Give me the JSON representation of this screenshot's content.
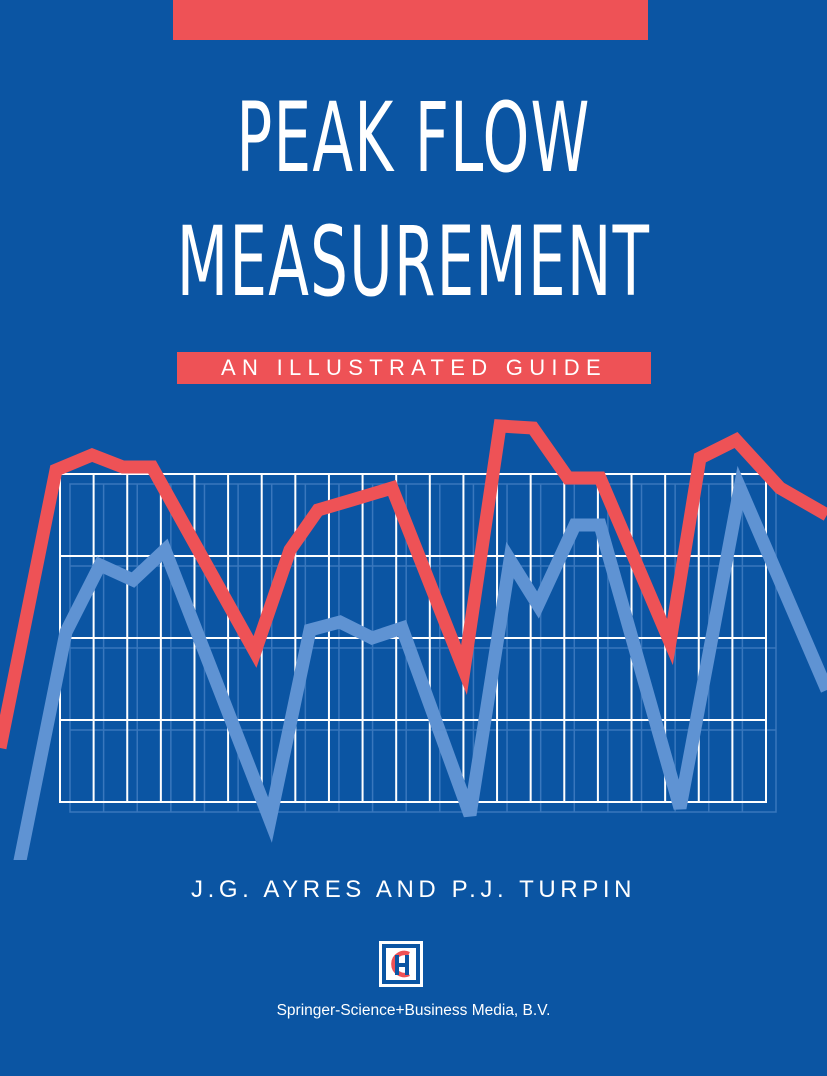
{
  "colors": {
    "background": "#0b55a3",
    "accent_red": "#ee5256",
    "light_blue": "#5f93d3",
    "white": "#ffffff"
  },
  "cover": {
    "title_line_1": "PEAK FLOW",
    "title_line_2": "MEASUREMENT",
    "subtitle": "AN ILLUSTRATED GUIDE",
    "authors": "J.G. AYRES AND P.J. TURPIN",
    "publisher": "Springer-Science+Business Media, B.V."
  },
  "logo": {
    "icon": "publisher-h-logo-icon"
  },
  "graph": {
    "icon": "peak-flow-chart-illustration",
    "grid_columns": 21,
    "grid_rows": 4
  }
}
